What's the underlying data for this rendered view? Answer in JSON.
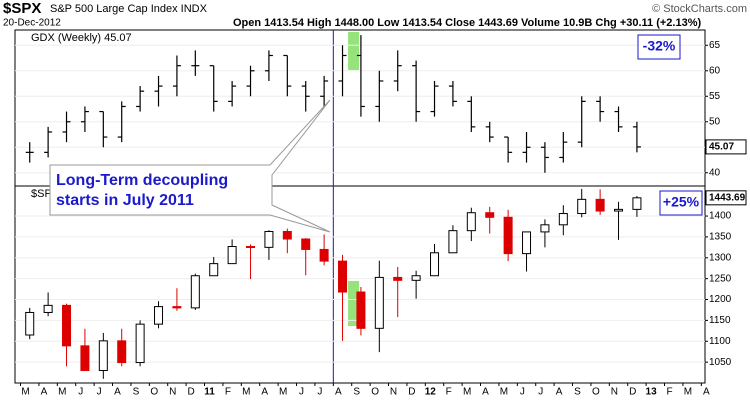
{
  "header": {
    "symbol": "$SPX",
    "name": "S&P 500 Large Cap Index INDX",
    "date": "20-Dec-2012",
    "quote": "Open 1413.54 High 1448.00 Low 1413.54 Close 1443.69 Volume 10.9B Chg +30.11 (+2.13%)",
    "logo": "© StockCharts.com"
  },
  "callout": [
    "Long-Term decoupling",
    "starts in July 2011"
  ],
  "chart_data": [
    {
      "type": "ohlc",
      "label": "GDX (Weekly) 45.07",
      "last_label": "45.07",
      "annotation": "-32%",
      "color": "#000000",
      "x": [
        2.5,
        3.5,
        4.5,
        5.5,
        6.5,
        7.5,
        8.5,
        9.5,
        10.5,
        11.5,
        12.5,
        13.5,
        14.5,
        15.5,
        16.5,
        17.5,
        18.5,
        19.5,
        20.5,
        21.5,
        22.5,
        23.5,
        24.5,
        25.5,
        26.5,
        27.5,
        28.5,
        29.5,
        30.5,
        31.5,
        32.5,
        33.5,
        34.5,
        35.5
      ],
      "open": [
        44,
        44,
        48,
        50,
        52,
        47,
        53,
        56,
        57,
        61,
        61,
        54,
        57,
        60,
        63,
        57,
        55,
        58,
        63,
        53,
        58,
        61,
        52,
        57,
        54,
        49,
        47,
        44,
        45,
        43,
        46,
        54,
        52,
        49
      ],
      "high": [
        46,
        49,
        52,
        53,
        52,
        54,
        57,
        59,
        63,
        64,
        61,
        58,
        61,
        64,
        63,
        58,
        59,
        65,
        67,
        60,
        64,
        62,
        58,
        58,
        55,
        50,
        47,
        48,
        46,
        48,
        55,
        55,
        53,
        50
      ],
      "low": [
        42,
        43,
        46,
        48,
        45,
        46,
        52,
        53,
        55,
        59,
        52,
        53,
        55,
        58,
        55,
        52,
        53,
        55,
        51,
        50,
        56,
        50,
        51,
        53,
        48,
        46,
        42,
        42,
        40,
        42,
        45,
        50,
        48,
        44
      ],
      "close": [
        44,
        48,
        50,
        52,
        47,
        53,
        56,
        57,
        61,
        61,
        54,
        57,
        60,
        63,
        57,
        55,
        58,
        63,
        53,
        58,
        61,
        52,
        57,
        54,
        49,
        47,
        44,
        45,
        43,
        46,
        54,
        52,
        49,
        45.07
      ],
      "xlim": [
        1.7,
        39.2
      ],
      "ylim": [
        37.4,
        68
      ],
      "yticks": [
        40,
        45,
        50,
        55,
        60,
        65
      ],
      "vline_x": 19,
      "vline_color": "#1a1aa8",
      "highlight_x": [
        19.8,
        20.4
      ],
      "highlight_color": "#7ddc5a"
    },
    {
      "type": "candlestick",
      "label": "$SPX",
      "last_label": "1443.69",
      "annotation": "+25%",
      "up_color": "#000000",
      "down_color": "#dd0000",
      "x": [
        2.5,
        3.5,
        4.5,
        5.5,
        6.5,
        7.5,
        8.5,
        9.5,
        10.5,
        11.5,
        12.5,
        13.5,
        14.5,
        15.5,
        16.5,
        17.5,
        18.5,
        19.5,
        20.5,
        21.5,
        22.5,
        23.5,
        24.5,
        25.5,
        26.5,
        27.5,
        28.5,
        29.5,
        30.5,
        31.5,
        32.5,
        33.5,
        34.5,
        35.5
      ],
      "open": [
        1115,
        1169,
        1186,
        1089,
        1030,
        1101,
        1049,
        1141,
        1183,
        1180,
        1257,
        1286,
        1327,
        1325,
        1363,
        1345,
        1320,
        1292,
        1218,
        1131,
        1253,
        1246,
        1257,
        1312,
        1365,
        1408,
        1397,
        1310,
        1362,
        1379,
        1406,
        1440,
        1412,
        1416
      ],
      "high": [
        1180,
        1217,
        1190,
        1130,
        1120,
        1130,
        1150,
        1196,
        1227,
        1262,
        1302,
        1344,
        1332,
        1366,
        1370,
        1347,
        1356,
        1307,
        1230,
        1293,
        1278,
        1269,
        1333,
        1378,
        1420,
        1422,
        1415,
        1363,
        1392,
        1426,
        1465,
        1464,
        1434,
        1448
      ],
      "low": [
        1105,
        1160,
        1040,
        1030,
        1010,
        1040,
        1040,
        1131,
        1173,
        1175,
        1257,
        1286,
        1249,
        1295,
        1311,
        1258,
        1282,
        1101,
        1114,
        1074,
        1158,
        1202,
        1258,
        1312,
        1340,
        1358,
        1292,
        1267,
        1325,
        1354,
        1397,
        1403,
        1343,
        1398
      ],
      "close": [
        1169,
        1186,
        1089,
        1030,
        1101,
        1049,
        1141,
        1183,
        1180,
        1257,
        1286,
        1327,
        1325,
        1363,
        1345,
        1320,
        1292,
        1218,
        1131,
        1253,
        1246,
        1257,
        1312,
        1365,
        1408,
        1397,
        1310,
        1362,
        1379,
        1406,
        1440,
        1412,
        1416,
        1443.69
      ],
      "xlim": [
        1.7,
        39.2
      ],
      "ylim": [
        1000,
        1472
      ],
      "yticks": [
        1050,
        1100,
        1150,
        1200,
        1250,
        1300,
        1350,
        1400
      ],
      "xticks": [
        {
          "value": 2,
          "label": "M"
        },
        {
          "value": 3,
          "label": "A"
        },
        {
          "value": 4,
          "label": "M"
        },
        {
          "value": 5,
          "label": "J"
        },
        {
          "value": 6,
          "label": "J"
        },
        {
          "value": 7,
          "label": "A"
        },
        {
          "value": 8,
          "label": "S"
        },
        {
          "value": 9,
          "label": "O"
        },
        {
          "value": 10,
          "label": "N"
        },
        {
          "value": 11,
          "label": "D"
        },
        {
          "value": 12,
          "label": "11"
        },
        {
          "value": 13,
          "label": "F"
        },
        {
          "value": 14,
          "label": "M"
        },
        {
          "value": 15,
          "label": "A"
        },
        {
          "value": 16,
          "label": "M"
        },
        {
          "value": 17,
          "label": "J"
        },
        {
          "value": 18,
          "label": "J"
        },
        {
          "value": 19,
          "label": "A"
        },
        {
          "value": 20,
          "label": "S"
        },
        {
          "value": 21,
          "label": "O"
        },
        {
          "value": 22,
          "label": "N"
        },
        {
          "value": 23,
          "label": "D"
        },
        {
          "value": 24,
          "label": "12"
        },
        {
          "value": 25,
          "label": "F"
        },
        {
          "value": 26,
          "label": "M"
        },
        {
          "value": 27,
          "label": "A"
        },
        {
          "value": 28,
          "label": "M"
        },
        {
          "value": 29,
          "label": "J"
        },
        {
          "value": 30,
          "label": "J"
        },
        {
          "value": 31,
          "label": "A"
        },
        {
          "value": 32,
          "label": "S"
        },
        {
          "value": 33,
          "label": "O"
        },
        {
          "value": 34,
          "label": "N"
        },
        {
          "value": 35,
          "label": "D"
        },
        {
          "value": 36,
          "label": "13"
        },
        {
          "value": 37,
          "label": "F"
        },
        {
          "value": 38,
          "label": "M"
        },
        {
          "value": 39,
          "label": "A"
        }
      ],
      "vline_x": 19,
      "vline_color": "#1a1aa8",
      "highlight_x": [
        19.8,
        20.4
      ],
      "highlight_color": "#7ddc5a"
    }
  ]
}
